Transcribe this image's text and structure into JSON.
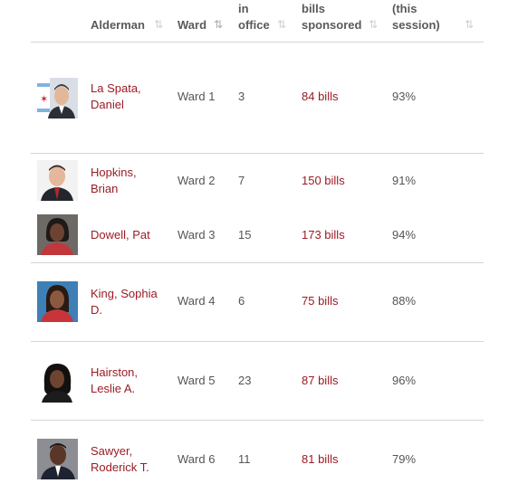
{
  "headers": {
    "alderman": "Alderman",
    "ward": "Ward",
    "years_line1": "in",
    "years_line2": "office",
    "bills_line1": "bills",
    "bills_line2": "sponsored",
    "pct_line1": "(this",
    "pct_line2": "session)"
  },
  "sort_icon": "sort-arrows-icon",
  "colors": {
    "accent": "#9b1b23",
    "text": "#555555",
    "divider": "#d4d4d4"
  },
  "rows": [
    {
      "name_line1": "La Spata,",
      "name_line2": "Daniel",
      "ward": "Ward 1",
      "years": "3",
      "bills": "84 bills",
      "pct": "93%"
    },
    {
      "name_line1": "Hopkins,",
      "name_line2": "Brian",
      "ward": "Ward 2",
      "years": "7",
      "bills": "150 bills",
      "pct": "91%"
    },
    {
      "name_line1": "Dowell, Pat",
      "name_line2": "",
      "ward": "Ward 3",
      "years": "15",
      "bills": "173 bills",
      "pct": "94%"
    },
    {
      "name_line1": "King, Sophia",
      "name_line2": "D.",
      "ward": "Ward 4",
      "years": "6",
      "bills": "75 bills",
      "pct": "88%"
    },
    {
      "name_line1": "Hairston,",
      "name_line2": "Leslie A.",
      "ward": "Ward 5",
      "years": "23",
      "bills": "87 bills",
      "pct": "96%"
    },
    {
      "name_line1": "Sawyer,",
      "name_line2": "Roderick T.",
      "ward": "Ward 6",
      "years": "11",
      "bills": "81 bills",
      "pct": "79%"
    }
  ]
}
